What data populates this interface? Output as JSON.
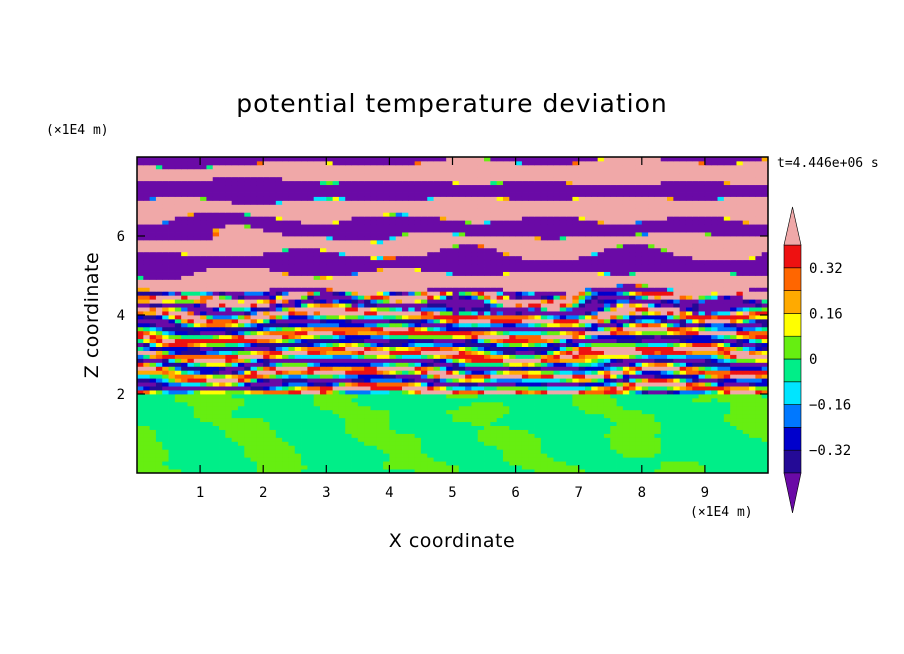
{
  "chart_data": {
    "type": "heatmap",
    "title": "potential temperature deviation",
    "xlabel": "X coordinate",
    "ylabel": "Z coordinate",
    "x_unit": "(×1E4 m)",
    "y_unit": "(×1E4 m)",
    "time_label": "t=4.446e+06 s",
    "xlim": [
      0,
      10
    ],
    "ylim": [
      0,
      8
    ],
    "x_ticks": [
      1,
      2,
      3,
      4,
      5,
      6,
      7,
      8,
      9
    ],
    "y_ticks": [
      2,
      4,
      6
    ],
    "colorbar": {
      "levels": [
        -0.4,
        -0.32,
        -0.24,
        -0.16,
        -0.08,
        0,
        0.08,
        0.16,
        0.24,
        0.32,
        0.4
      ],
      "colors": [
        "#6a0aa6",
        "#240a96",
        "#0000cc",
        "#0078ff",
        "#00e5ff",
        "#00ee88",
        "#66ee11",
        "#ffff00",
        "#ffaa00",
        "#ff6600",
        "#ee1111",
        "#f0a8a8"
      ],
      "tick_labels": [
        "0.32",
        "0.16",
        "0",
        "−0.16",
        "−0.32"
      ],
      "tick_values": [
        0.32,
        0.16,
        0,
        -0.16,
        -0.32
      ]
    },
    "bands": [
      {
        "from": 0.0,
        "to": 2.0,
        "description": "green cells"
      },
      {
        "from": 2.0,
        "to": 4.6,
        "description": "mixed multicolor bands"
      },
      {
        "from": 4.6,
        "to": 8.0,
        "description": "alternating pink and purple layers"
      }
    ]
  }
}
